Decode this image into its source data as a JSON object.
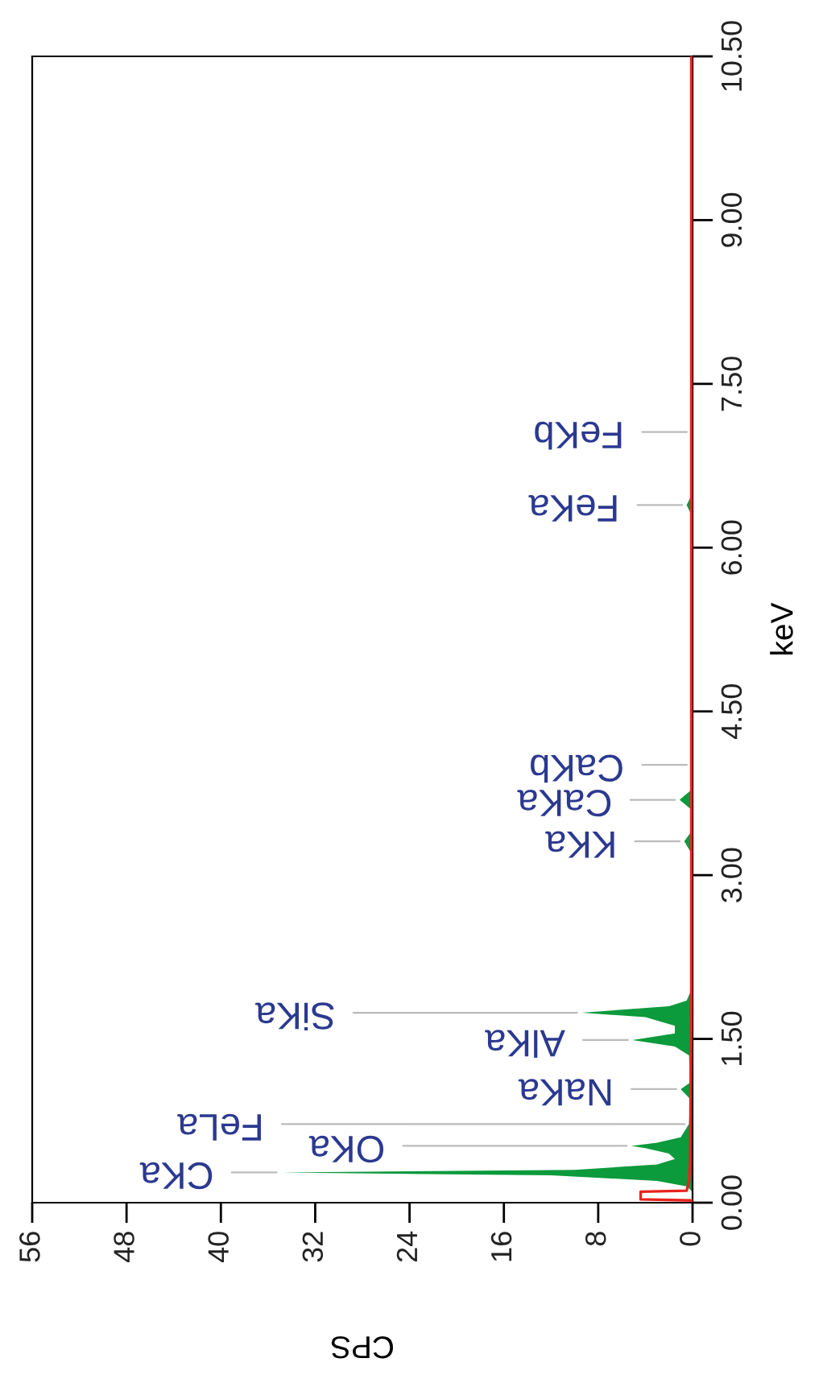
{
  "chart_data": {
    "type": "area",
    "orientation": "horizontal",
    "xlabel": "CPS",
    "ylabel": "keV",
    "xlim": [
      56,
      0
    ],
    "xticks": [
      56,
      48,
      40,
      32,
      24,
      16,
      8,
      0
    ],
    "ylim": [
      0,
      10.5
    ],
    "yticks": [
      {
        "value": 0,
        "label": "0.00"
      },
      {
        "value": 1.5,
        "label": "1.50"
      },
      {
        "value": 3,
        "label": "3.00"
      },
      {
        "value": 4.5,
        "label": "4.50"
      },
      {
        "value": 6,
        "label": "6.00"
      },
      {
        "value": 7.5,
        "label": "7.50"
      },
      {
        "value": 9,
        "label": "9.00"
      },
      {
        "value": 10.5,
        "label": "10.50"
      }
    ],
    "grid": false,
    "legend": false,
    "series": [
      {
        "color": "#0b9a3c",
        "x": [
          0.1,
          0.15,
          0.2,
          0.25,
          0.277,
          0.3,
          0.35,
          0.4,
          0.45,
          0.5,
          0.52,
          0.55,
          0.6,
          0.72,
          0.95,
          1.04,
          1.1,
          1.35,
          1.43,
          1.49,
          1.55,
          1.62,
          1.7,
          1.74,
          1.8,
          1.85,
          1.95,
          3.2,
          3.31,
          3.4,
          3.6,
          3.69,
          3.78,
          4.01,
          6.3,
          6.39,
          6.48,
          7.06,
          10.5
        ],
        "values": [
          0,
          0.5,
          3,
          12,
          34.9,
          10,
          3,
          1.5,
          2,
          4,
          5.2,
          3,
          1,
          0.3,
          0.2,
          1.0,
          0.2,
          0.3,
          1.5,
          5.1,
          1.5,
          1.5,
          4,
          9.4,
          2,
          0.5,
          0.1,
          0.1,
          0.7,
          0.1,
          0.1,
          1.1,
          0.1,
          0.1,
          0.1,
          0.5,
          0.1,
          0.1,
          0.1
        ]
      },
      {
        "type": "line",
        "color": "#e8231e",
        "x": [
          0.02,
          0.03,
          0.1,
          0.11,
          0.2,
          0.4,
          2,
          10.5
        ],
        "values": [
          0,
          4.4,
          4.4,
          0.5,
          0.3,
          0.2,
          0.1,
          0.1
        ]
      }
    ],
    "annotations": [
      {
        "text": "CKa",
        "x": 34.9,
        "y": 0.277
      },
      {
        "text": "OKa",
        "x": 5.2,
        "y": 0.52
      },
      {
        "text": "FeLa",
        "x": 0.3,
        "y": 0.72
      },
      {
        "text": "NaKa",
        "x": 1.0,
        "y": 1.04
      },
      {
        "text": "AlKa",
        "x": 5.1,
        "y": 1.49
      },
      {
        "text": "SiKa",
        "x": 9.4,
        "y": 1.74
      },
      {
        "text": "KKa",
        "x": 0.7,
        "y": 3.31
      },
      {
        "text": "CaKa",
        "x": 1.1,
        "y": 3.69
      },
      {
        "text": "CaKb",
        "x": 0.1,
        "y": 4.01
      },
      {
        "text": "FeKa",
        "x": 0.5,
        "y": 6.39
      },
      {
        "text": "FeKb",
        "x": 0.1,
        "y": 7.06
      }
    ]
  }
}
